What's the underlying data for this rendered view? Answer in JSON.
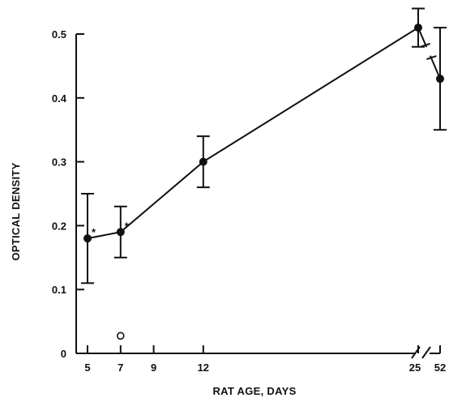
{
  "chart_data": {
    "type": "line",
    "xlabel": "RAT AGE, DAYS",
    "ylabel": "OPTICAL DENSITY",
    "ylim": [
      0,
      0.5
    ],
    "y_ticks": [
      "0",
      "0.1",
      "0.2",
      "0.3",
      "0.4",
      "0.5"
    ],
    "x_ticks": [
      "5",
      "7",
      "9",
      "12",
      "25",
      "52"
    ],
    "x_axis_break": "between 25 and 52",
    "grid": false,
    "legend": "none",
    "series": [
      {
        "points": [
          {
            "x": 5,
            "y": 0.18,
            "err_low": 0.11,
            "err_high": 0.25,
            "marker": "*"
          },
          {
            "x": 7,
            "y": 0.19,
            "err_low": 0.15,
            "err_high": 0.23,
            "marker": "*"
          },
          {
            "x": 12,
            "y": 0.3,
            "err_low": 0.26,
            "err_high": 0.34,
            "marker": ""
          },
          {
            "x": 25,
            "y": 0.51,
            "err_low": 0.48,
            "err_high": 0.54,
            "marker": ""
          },
          {
            "x": 52,
            "y": 0.43,
            "err_low": 0.35,
            "err_high": 0.51,
            "marker": ""
          }
        ]
      }
    ],
    "extra_points": [
      {
        "x": 7,
        "y": 0.03,
        "symbol": "o"
      }
    ]
  }
}
